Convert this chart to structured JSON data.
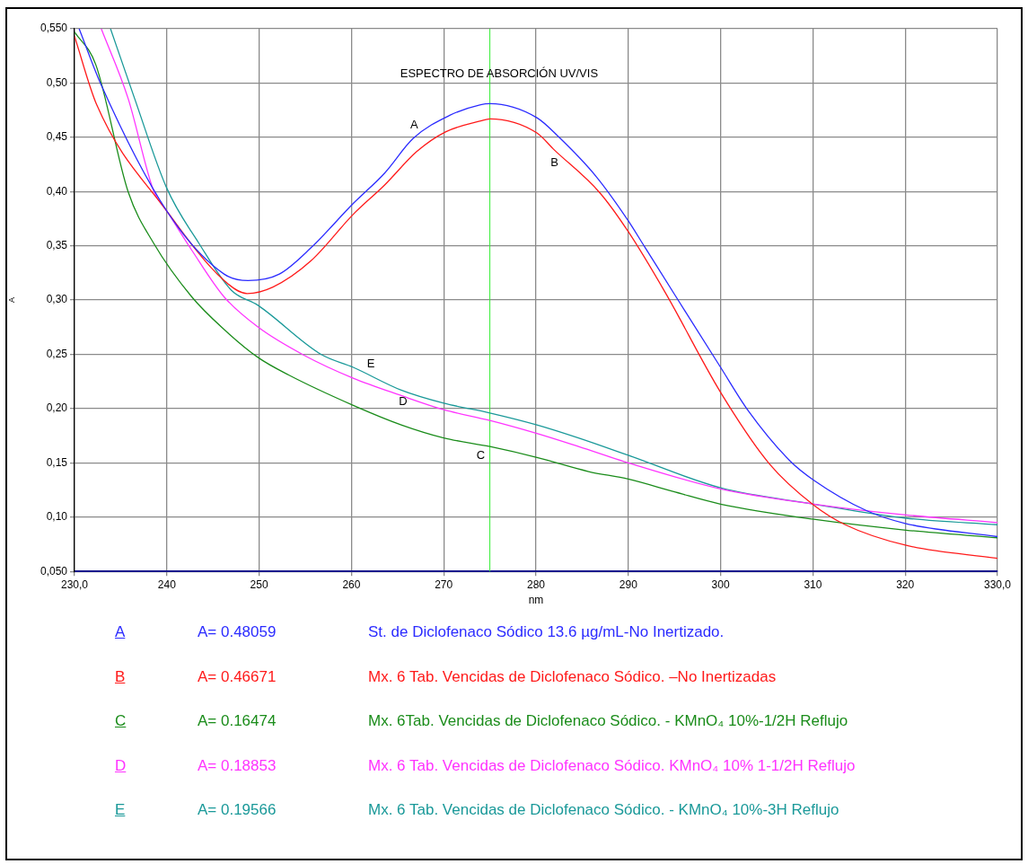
{
  "chart_data": {
    "type": "line",
    "title": "ESPECTRO DE ABSORCIÓN UV/VIS",
    "xlabel": "nm",
    "ylabel": "A",
    "xlim": [
      230,
      330
    ],
    "ylim": [
      0.05,
      0.55
    ],
    "xticks": [
      {
        "value": 230,
        "label": "230,0"
      },
      240,
      250,
      260,
      270,
      280,
      290,
      300,
      310,
      320,
      {
        "value": 330,
        "label": "330,0"
      }
    ],
    "yticks": [
      {
        "value": 0.05,
        "label": "0,050"
      },
      {
        "value": 0.1,
        "label": "0,10"
      },
      {
        "value": 0.15,
        "label": "0,15"
      },
      {
        "value": 0.2,
        "label": "0,20"
      },
      {
        "value": 0.25,
        "label": "0,25"
      },
      {
        "value": 0.3,
        "label": "0,30"
      },
      {
        "value": 0.35,
        "label": "0,35"
      },
      {
        "value": 0.4,
        "label": "0,40"
      },
      {
        "value": 0.45,
        "label": "0,45"
      },
      {
        "value": 0.5,
        "label": "0,50"
      },
      {
        "value": 0.55,
        "label": "0,550"
      }
    ],
    "grid": true,
    "legend": "bottom",
    "marker": "none",
    "line_style": "solid",
    "ref_lines": [
      {
        "axis": "x",
        "value": 275,
        "color": "#33ee33"
      }
    ],
    "series": [
      {
        "name": "A",
        "color": "#2b2bff",
        "x": [
          230.5,
          232.9,
          240,
          246.2,
          248.8,
          252.2,
          255.6,
          260.2,
          263.6,
          266.7,
          270.6,
          274,
          275,
          280.1,
          282.5,
          286.5,
          290,
          291.7,
          295.1,
          300,
          303,
          307.5,
          310.1,
          315.8,
          320.1,
          330
        ],
        "values": [
          0.55,
          0.498,
          0.382,
          0.324,
          0.318,
          0.324,
          0.348,
          0.389,
          0.417,
          0.449,
          0.47,
          0.48,
          0.481,
          0.468,
          0.45,
          0.414,
          0.373,
          0.35,
          0.304,
          0.238,
          0.198,
          0.152,
          0.134,
          0.106,
          0.094,
          0.082
        ]
      },
      {
        "name": "B",
        "color": "#ff1a1a",
        "x": [
          230,
          232.4,
          240,
          246.2,
          248.7,
          251.5,
          255.6,
          260.2,
          263.6,
          267.1,
          270.2,
          274,
          275,
          280.1,
          281.9,
          286.9,
          290,
          294,
          300,
          305.3,
          310.1,
          313.5,
          320.1,
          330
        ],
        "values": [
          0.543,
          0.48,
          0.382,
          0.318,
          0.306,
          0.312,
          0.336,
          0.379,
          0.406,
          0.437,
          0.455,
          0.465,
          0.467,
          0.454,
          0.439,
          0.399,
          0.363,
          0.307,
          0.215,
          0.149,
          0.111,
          0.093,
          0.074,
          0.062
        ]
      },
      {
        "name": "C",
        "color": "#1a8c1a",
        "x": [
          230,
          232.3,
          235.8,
          238.6,
          242.7,
          246.2,
          249.9,
          253.2,
          260.2,
          265.4,
          270,
          275,
          280.1,
          285.7,
          290,
          295.1,
          300,
          310.1,
          320.1,
          330
        ],
        "values": [
          0.547,
          0.517,
          0.4,
          0.352,
          0.303,
          0.273,
          0.247,
          0.231,
          0.203,
          0.185,
          0.173,
          0.165,
          0.155,
          0.142,
          0.135,
          0.123,
          0.112,
          0.098,
          0.088,
          0.081
        ]
      },
      {
        "name": "D",
        "color": "#ff33ff",
        "x": [
          232.9,
          235.8,
          238.6,
          240,
          242.7,
          246.2,
          249.9,
          254.9,
          260.2,
          265.4,
          270,
          275,
          280.1,
          284.6,
          290,
          300,
          310.1,
          320.1,
          330
        ],
        "values": [
          0.55,
          0.486,
          0.4,
          0.382,
          0.346,
          0.303,
          0.275,
          0.249,
          0.228,
          0.212,
          0.199,
          0.189,
          0.177,
          0.165,
          0.15,
          0.126,
          0.112,
          0.102,
          0.095
        ]
      },
      {
        "name": "E",
        "color": "#1a9999",
        "x": [
          233.9,
          236.5,
          240,
          243.5,
          247,
          249.9,
          256.7,
          260.2,
          265.4,
          270,
          275,
          280.1,
          284.6,
          290,
          300,
          310.1,
          320.1,
          330
        ],
        "values": [
          0.55,
          0.486,
          0.403,
          0.352,
          0.309,
          0.295,
          0.25,
          0.238,
          0.217,
          0.205,
          0.196,
          0.185,
          0.173,
          0.157,
          0.127,
          0.112,
          0.099,
          0.093
        ]
      }
    ],
    "annotations": [
      "A",
      "B",
      "C",
      "D",
      "E",
      "A= 0.48059",
      "St. de Diclofenaco Sódico 13.6 µg/mL-No Inertizado.",
      "A= 0.46671",
      "Mx. 6 Tab. Vencidas de Diclofenaco Sódico. –No Inertizadas",
      "A= 0.16474",
      "Mx. 6Tab. Vencidas de Diclofenaco Sódico. - KMnO₄  10%-1/2H Reflujo",
      "A= 0.18853",
      "Mx. 6 Tab. Vencidas de Diclofenaco Sódico. KMnO₄ 10% 1-1/2H Reflujo",
      "A= 0.19566",
      "Mx. 6 Tab. Vencidas de Diclofenaco Sódico. - KMnO₄ 10%-3H Reflujo"
    ]
  }
}
